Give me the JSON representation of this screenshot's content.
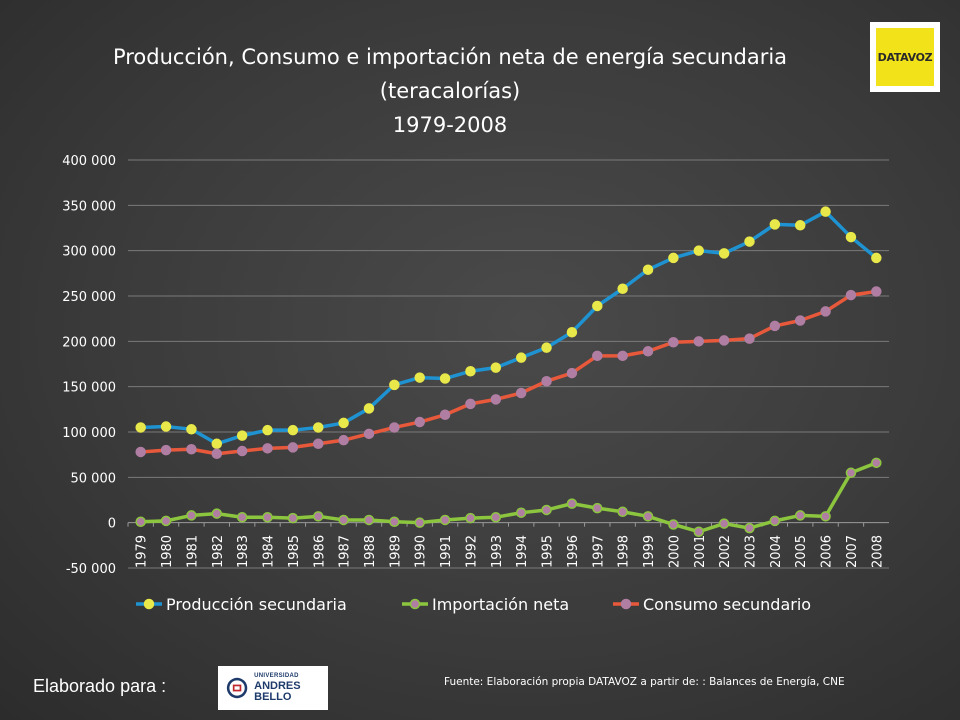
{
  "logo": {
    "text": "DATAVOZ"
  },
  "footer": {
    "prepared_for": "Elaborado para :",
    "university_small": "UNIVERSIDAD",
    "university_big": "ANDRES BELLO",
    "source": "Fuente: Elaboración propia DATAVOZ a partir de: : Balances de Energía, CNE"
  },
  "colors": {
    "production": "#1f93d1",
    "imports": "#8cc63f",
    "consumption": "#e8583a",
    "marker_yellow": "#e8e84a",
    "marker_mauve": "#b07ea3"
  },
  "chart_data": {
    "type": "line",
    "title": "Producción, Consumo e importación neta de energía secundaria",
    "subtitle": "(teracalorías)",
    "period": "1979-2008",
    "xlabel": "",
    "ylabel": "",
    "ylim": [
      -50000,
      400000
    ],
    "yticks": [
      -50000,
      0,
      50000,
      100000,
      150000,
      200000,
      250000,
      300000,
      350000,
      400000
    ],
    "ytick_labels": [
      "-50 000",
      "0",
      "50 000",
      "100 000",
      "150 000",
      "200 000",
      "250 000",
      "300 000",
      "350 000",
      "400 000"
    ],
    "grid": true,
    "legend_position": "bottom",
    "categories": [
      "1979",
      "1980",
      "1981",
      "1982",
      "1983",
      "1984",
      "1985",
      "1986",
      "1987",
      "1988",
      "1989",
      "1990",
      "1991",
      "1992",
      "1993",
      "1994",
      "1995",
      "1996",
      "1997",
      "1998",
      "1999",
      "2000",
      "2001",
      "2002",
      "2003",
      "2004",
      "2005",
      "2006",
      "2007",
      "2008"
    ],
    "series": [
      {
        "name": "Producción secundaria",
        "key": "production",
        "values": [
          105000,
          106000,
          103000,
          87000,
          96000,
          102000,
          102000,
          105000,
          110000,
          126000,
          152000,
          160000,
          159000,
          167000,
          171000,
          182000,
          193000,
          210000,
          239000,
          258000,
          279000,
          292000,
          300000,
          297000,
          310000,
          329000,
          328000,
          343000,
          315000,
          292000
        ]
      },
      {
        "name": "Importación neta",
        "key": "imports",
        "values": [
          1000,
          2000,
          8000,
          10000,
          6000,
          6000,
          5000,
          7000,
          3000,
          3000,
          1000,
          0,
          3000,
          5000,
          6000,
          11000,
          14000,
          21000,
          16000,
          12000,
          7000,
          -2000,
          -10000,
          -1000,
          -6000,
          2000,
          8000,
          7000,
          55000,
          66000
        ]
      },
      {
        "name": "Consumo secundario",
        "key": "consumption",
        "values": [
          78000,
          80000,
          81000,
          76000,
          79000,
          82000,
          83000,
          87000,
          91000,
          98000,
          105000,
          111000,
          119000,
          131000,
          136000,
          143000,
          156000,
          165000,
          184000,
          184000,
          189000,
          199000,
          200000,
          201000,
          203000,
          217000,
          223000,
          233000,
          251000,
          255000
        ]
      }
    ]
  }
}
